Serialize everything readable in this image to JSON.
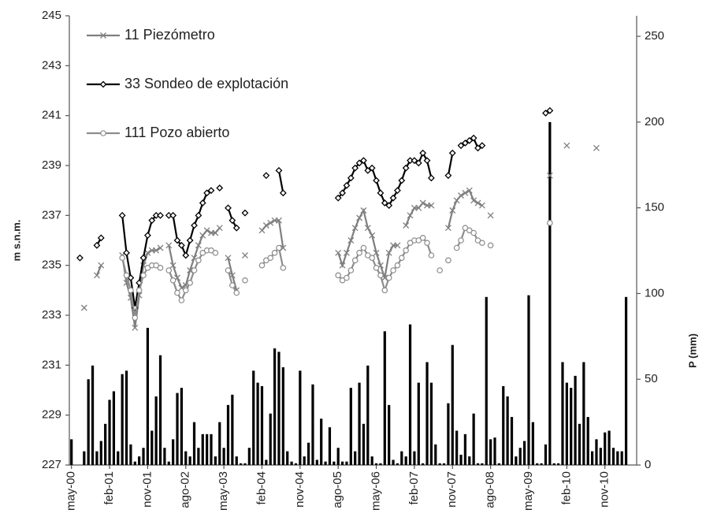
{
  "chart_data": {
    "type": "line",
    "ylabel": "m s.n.m.",
    "y2label": "P (mm)",
    "ylim": [
      227,
      245
    ],
    "yticks": [
      227,
      229,
      231,
      233,
      235,
      237,
      239,
      241,
      243,
      245
    ],
    "y2lim": [
      0,
      262
    ],
    "y2ticks": [
      0,
      50,
      100,
      150,
      200,
      250
    ],
    "categories": [
      "may-00",
      null,
      null,
      null,
      null,
      null,
      null,
      null,
      null,
      "feb-01",
      null,
      null,
      null,
      null,
      null,
      null,
      null,
      null,
      "nov-01",
      null,
      null,
      null,
      null,
      null,
      null,
      null,
      null,
      "ago-02",
      null,
      null,
      null,
      null,
      null,
      null,
      null,
      null,
      "may-03",
      null,
      null,
      null,
      null,
      null,
      null,
      null,
      null,
      "feb-04",
      null,
      null,
      null,
      null,
      null,
      null,
      null,
      null,
      "nov-04",
      null,
      null,
      null,
      null,
      null,
      null,
      null,
      null,
      "ago-05",
      null,
      null,
      null,
      null,
      null,
      null,
      null,
      null,
      "may-06",
      null,
      null,
      null,
      null,
      null,
      null,
      null,
      null,
      "feb-07",
      null,
      null,
      null,
      null,
      null,
      null,
      null,
      null,
      "nov-07",
      null,
      null,
      null,
      null,
      null,
      null,
      null,
      null,
      "ago-08",
      null,
      null,
      null,
      null,
      null,
      null,
      null,
      null,
      "may-09",
      null,
      null,
      null,
      null,
      null,
      null,
      null,
      null,
      "feb-10",
      null,
      null,
      null,
      null,
      null,
      null,
      null,
      null,
      "nov-10",
      null,
      null,
      null,
      null,
      null,
      null,
      null
    ],
    "series": [
      {
        "name": "11 Piezómetro",
        "color": "#7f7f7f",
        "marker": "x",
        "values": [
          null,
          null,
          null,
          233.3,
          null,
          null,
          234.6,
          235.0,
          null,
          null,
          null,
          null,
          235.4,
          234.3,
          233.7,
          232.5,
          233.8,
          235.0,
          235.5,
          235.6,
          235.6,
          235.7,
          null,
          235.8,
          235.0,
          234.5,
          234.1,
          234.2,
          234.8,
          235.3,
          235.8,
          236.2,
          236.4,
          236.3,
          236.3,
          236.5,
          null,
          235.3,
          234.6,
          234.0,
          null,
          235.4,
          null,
          null,
          null,
          236.4,
          236.6,
          236.7,
          236.8,
          236.8,
          235.7,
          null,
          null,
          null,
          null,
          null,
          null,
          null,
          null,
          null,
          null,
          null,
          null,
          235.5,
          235.0,
          235.5,
          236.0,
          236.5,
          236.9,
          237.2,
          236.5,
          236.2,
          235.5,
          235.0,
          234.5,
          235.5,
          235.8,
          235.8,
          null,
          236.6,
          237.0,
          237.3,
          237.3,
          237.5,
          237.4,
          237.4,
          null,
          null,
          null,
          236.5,
          237.2,
          237.6,
          237.8,
          237.9,
          238.0,
          237.6,
          237.5,
          237.4,
          null,
          237.0,
          null,
          null,
          null,
          null,
          null,
          null,
          null,
          null,
          null,
          null,
          null,
          null,
          null,
          238.6,
          null,
          null,
          null,
          239.8,
          null,
          null,
          null,
          null,
          null,
          null,
          239.7,
          null,
          null,
          null,
          null,
          null,
          null,
          null,
          null,
          null
        ]
      },
      {
        "name": "33 Sondeo de explotación",
        "color": "#000000",
        "marker": "diamond",
        "values": [
          null,
          null,
          235.3,
          null,
          null,
          null,
          235.8,
          236.1,
          null,
          null,
          null,
          null,
          237.0,
          235.5,
          234.5,
          233.3,
          234.3,
          235.3,
          236.2,
          236.8,
          237.0,
          237.0,
          null,
          237.0,
          237.0,
          236.0,
          235.8,
          235.4,
          236.0,
          236.6,
          237.0,
          237.5,
          237.9,
          238.0,
          null,
          238.1,
          null,
          237.3,
          236.8,
          236.5,
          null,
          237.1,
          null,
          null,
          null,
          null,
          238.6,
          null,
          null,
          238.8,
          237.9,
          null,
          null,
          null,
          null,
          null,
          null,
          null,
          null,
          null,
          null,
          null,
          null,
          237.7,
          237.9,
          238.2,
          238.5,
          238.9,
          239.1,
          239.2,
          238.8,
          238.9,
          238.4,
          237.9,
          237.5,
          237.4,
          237.7,
          238.0,
          238.4,
          238.9,
          239.2,
          239.2,
          239.1,
          239.5,
          239.2,
          238.5,
          null,
          null,
          null,
          238.6,
          239.5,
          null,
          239.8,
          239.9,
          240.0,
          240.1,
          239.7,
          239.8,
          null,
          null,
          null,
          null,
          null,
          null,
          null,
          null,
          null,
          null,
          null,
          null,
          null,
          null,
          241.1,
          241.2,
          null,
          null,
          null,
          null,
          null,
          null,
          null,
          null,
          null,
          null,
          null,
          null,
          null,
          null,
          null,
          null,
          null,
          null,
          null,
          null
        ]
      },
      {
        "name": "111 Pozo abierto",
        "color": "#8c8c8c",
        "marker": "circle",
        "values": [
          null,
          null,
          null,
          null,
          null,
          null,
          null,
          null,
          null,
          null,
          null,
          null,
          235.3,
          234.6,
          234.0,
          232.9,
          234.0,
          234.6,
          234.9,
          235.0,
          235.0,
          234.9,
          null,
          234.8,
          234.4,
          233.9,
          233.6,
          234.0,
          234.3,
          234.8,
          235.2,
          235.5,
          235.6,
          235.6,
          235.5,
          null,
          null,
          234.8,
          234.2,
          233.9,
          null,
          234.4,
          null,
          null,
          null,
          235.0,
          235.2,
          235.3,
          235.5,
          235.7,
          234.9,
          null,
          null,
          null,
          null,
          null,
          null,
          null,
          null,
          null,
          null,
          null,
          null,
          234.6,
          234.4,
          234.5,
          234.8,
          235.2,
          235.5,
          235.7,
          235.4,
          235.3,
          234.9,
          234.6,
          234.0,
          234.5,
          234.8,
          235.0,
          235.3,
          235.6,
          235.9,
          236.0,
          236.0,
          236.1,
          235.9,
          235.4,
          null,
          234.8,
          null,
          235.2,
          null,
          235.7,
          236.0,
          236.5,
          236.4,
          236.3,
          236.0,
          235.9,
          null,
          235.8,
          null,
          null,
          null,
          null,
          null,
          null,
          null,
          null,
          null,
          null,
          null,
          null,
          null,
          236.7,
          null,
          null,
          null,
          null,
          null,
          null,
          null,
          null,
          null,
          null,
          null,
          null,
          null,
          null,
          null,
          null,
          null,
          null,
          null,
          null
        ]
      },
      {
        "type": "bar",
        "axis": "y2",
        "color": "#000000",
        "values": [
          15,
          0,
          0,
          8,
          50,
          58,
          8,
          14,
          24,
          38,
          43,
          8,
          53,
          55,
          12,
          2,
          5,
          10,
          80,
          20,
          40,
          64,
          10,
          2,
          15,
          42,
          45,
          8,
          5,
          25,
          10,
          18,
          18,
          18,
          5,
          25,
          10,
          35,
          41,
          5,
          1,
          1,
          10,
          55,
          48,
          46,
          3,
          30,
          68,
          66,
          57,
          8,
          2,
          1,
          55,
          5,
          13,
          47,
          3,
          27,
          2,
          22,
          2,
          10,
          2,
          2,
          45,
          8,
          48,
          24,
          58,
          5,
          1,
          1,
          78,
          35,
          3,
          1,
          8,
          5,
          82,
          8,
          48,
          1,
          60,
          48,
          12,
          1,
          1,
          36,
          70,
          20,
          6,
          18,
          5,
          30,
          1,
          1,
          98,
          15,
          16,
          1,
          46,
          40,
          28,
          5,
          10,
          14,
          99,
          25,
          1,
          1,
          12,
          200,
          1,
          1,
          60,
          48,
          45,
          52,
          24,
          60,
          28,
          8,
          15,
          10,
          19,
          20,
          10,
          8,
          8,
          98,
          0,
          0
        ]
      }
    ]
  }
}
